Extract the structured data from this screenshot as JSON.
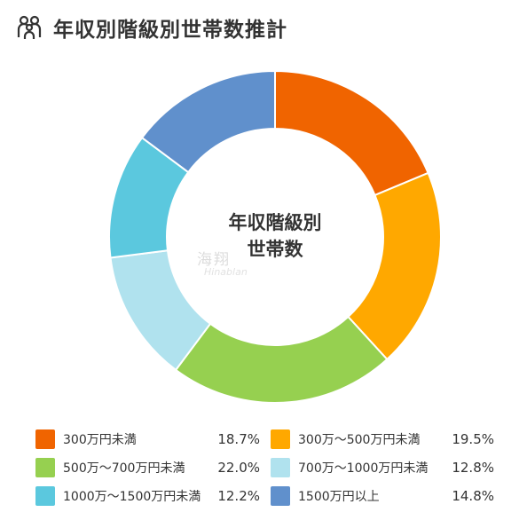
{
  "title": "年収別階級別世帯数推計",
  "icon": "people-group-icon",
  "center_label_line1": "年収階級別",
  "center_label_line2": "世帯数",
  "watermark": "海翔",
  "watermark_sub": "Hinablan",
  "chart_data": {
    "type": "pie",
    "subtype": "donut",
    "title": "年収別階級別世帯数推計",
    "categories": [
      "300万円未満",
      "300万～500万円未満",
      "500万～700万円未満",
      "700万～1000万円未満",
      "1000万～1500万円未満",
      "1500万円以上"
    ],
    "values": [
      18.7,
      19.5,
      22.0,
      12.8,
      12.2,
      14.8
    ],
    "value_labels": [
      "18.7%",
      "19.5%",
      "22.0%",
      "12.8%",
      "12.2%",
      "14.8%"
    ],
    "colors": [
      "#F06400",
      "#FFA800",
      "#96D050",
      "#B0E2EE",
      "#5BC8DE",
      "#6090CC"
    ],
    "legend_position": "bottom",
    "start_angle": "top-clockwise"
  }
}
